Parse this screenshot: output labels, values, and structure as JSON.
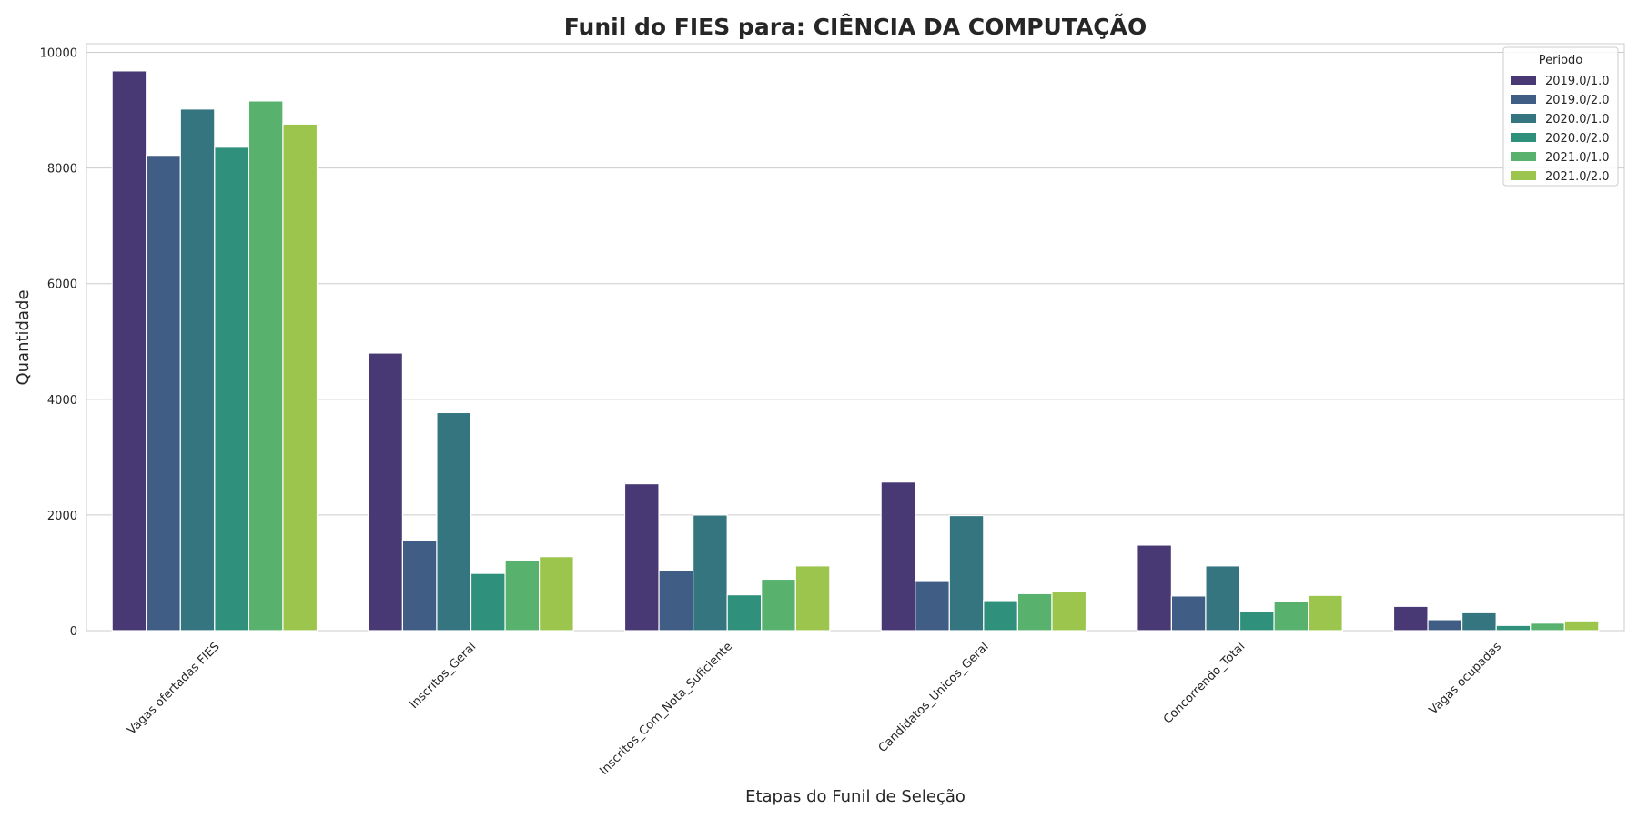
{
  "chart_data": {
    "type": "bar",
    "title": "Funil do FIES para: CIÊNCIA DA COMPUTAÇÃO",
    "xlabel": "Etapas do Funil de Seleção",
    "ylabel": "Quantidade",
    "ylim": [
      0,
      10150
    ],
    "yticks": [
      0,
      2000,
      4000,
      6000,
      8000,
      10000
    ],
    "grid": true,
    "categories": [
      "Vagas ofertadas FIES",
      "Inscritos_Geral",
      "Inscritos_Com_Nota_Suficiente",
      "Candidatos_Unicos_Geral",
      "Concorrendo_Total",
      "Vagas ocupadas"
    ],
    "legend": {
      "title": "Periodo",
      "position": "top-right"
    },
    "series": [
      {
        "name": "2019.0/1.0",
        "color": "#483873",
        "values": [
          9680,
          4800,
          2540,
          2570,
          1480,
          420
        ]
      },
      {
        "name": "2019.0/2.0",
        "color": "#405D85",
        "values": [
          8220,
          1560,
          1040,
          850,
          600,
          190
        ]
      },
      {
        "name": "2020.0/1.0",
        "color": "#34757F",
        "values": [
          9020,
          3770,
          2000,
          1990,
          1120,
          310
        ]
      },
      {
        "name": "2020.0/2.0",
        "color": "#2F917C",
        "values": [
          8360,
          990,
          620,
          520,
          340,
          90
        ]
      },
      {
        "name": "2021.0/1.0",
        "color": "#58B26E",
        "values": [
          9160,
          1220,
          890,
          640,
          500,
          130
        ]
      },
      {
        "name": "2021.0/2.0",
        "color": "#9BC54C",
        "values": [
          8760,
          1280,
          1120,
          670,
          610,
          170
        ]
      }
    ]
  }
}
